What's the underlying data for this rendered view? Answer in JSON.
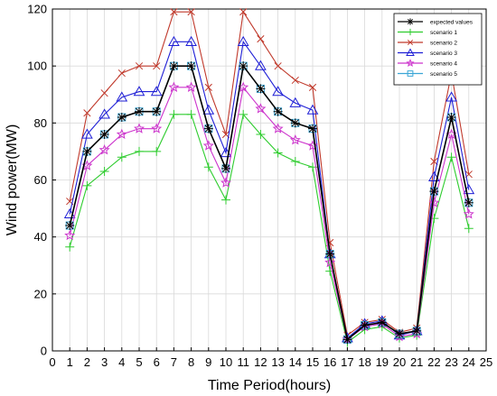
{
  "chart_data": {
    "type": "line",
    "xlabel": "Time Period(hours)",
    "ylabel": "Wind power(MW)",
    "xlim": [
      0,
      25
    ],
    "ylim": [
      0,
      120
    ],
    "xticks": [
      "0",
      "1",
      "2",
      "3",
      "4",
      "5",
      "6",
      "7",
      "8",
      "9",
      "10",
      "11",
      "12",
      "13",
      "14",
      "15",
      "16",
      "17",
      "18",
      "19",
      "20",
      "21",
      "22",
      "23",
      "24",
      "25"
    ],
    "yticks": [
      "0",
      "20",
      "40",
      "60",
      "80",
      "100",
      "120"
    ],
    "grid": true,
    "legend_position": "top-right",
    "x": [
      1,
      2,
      3,
      4,
      5,
      6,
      7,
      8,
      9,
      10,
      11,
      12,
      13,
      14,
      15,
      16,
      17,
      18,
      19,
      20,
      21,
      22,
      23,
      24
    ],
    "series": [
      {
        "name": "expected values",
        "color": "#000000",
        "marker": "asterisk",
        "values": [
          44,
          70,
          76,
          82,
          84,
          84,
          100,
          100,
          78,
          64,
          100,
          92,
          84,
          80,
          78,
          34,
          4,
          9,
          10,
          6,
          7,
          56,
          82,
          52
        ]
      },
      {
        "name": "scenario 1",
        "color": "#2ecc2e",
        "marker": "plus",
        "values": [
          36.5,
          58,
          63,
          68,
          70,
          70,
          83,
          83,
          64.5,
          53,
          83,
          76,
          69.5,
          66.5,
          64.5,
          28,
          3,
          7.5,
          8.5,
          4.5,
          5.5,
          46.5,
          68,
          43
        ]
      },
      {
        "name": "scenario 2",
        "color": "#c0392b",
        "marker": "x",
        "values": [
          52.5,
          83.5,
          90.5,
          97.5,
          100,
          100,
          119,
          119,
          92.5,
          76,
          119,
          109.5,
          100,
          95,
          92.5,
          38,
          5.5,
          10,
          11,
          6.5,
          8,
          66.5,
          97.5,
          62
        ]
      },
      {
        "name": "scenario 3",
        "color": "#1f1fd6",
        "marker": "triangle",
        "values": [
          48,
          76,
          83,
          89,
          91,
          91,
          108.5,
          108.5,
          84.5,
          69.5,
          108.5,
          100,
          91,
          87,
          84.5,
          34,
          4.5,
          9.5,
          10.5,
          5.5,
          7,
          61,
          89,
          56.5
        ]
      },
      {
        "name": "scenario 4",
        "color": "#cc33cc",
        "marker": "star",
        "values": [
          40.5,
          65,
          70.5,
          76,
          78,
          78,
          92.5,
          92.5,
          72,
          59,
          92.5,
          85,
          78,
          74,
          72,
          31,
          4,
          8.5,
          9.5,
          5,
          6,
          52,
          76,
          48
        ]
      },
      {
        "name": "scenario 5",
        "color": "#3aa6d6",
        "marker": "square",
        "values": [
          44,
          70,
          76,
          82,
          84,
          84,
          100,
          100,
          78,
          64,
          100,
          92,
          84,
          80,
          78,
          34,
          4,
          9,
          10,
          6,
          7,
          56,
          82,
          52
        ]
      }
    ]
  }
}
